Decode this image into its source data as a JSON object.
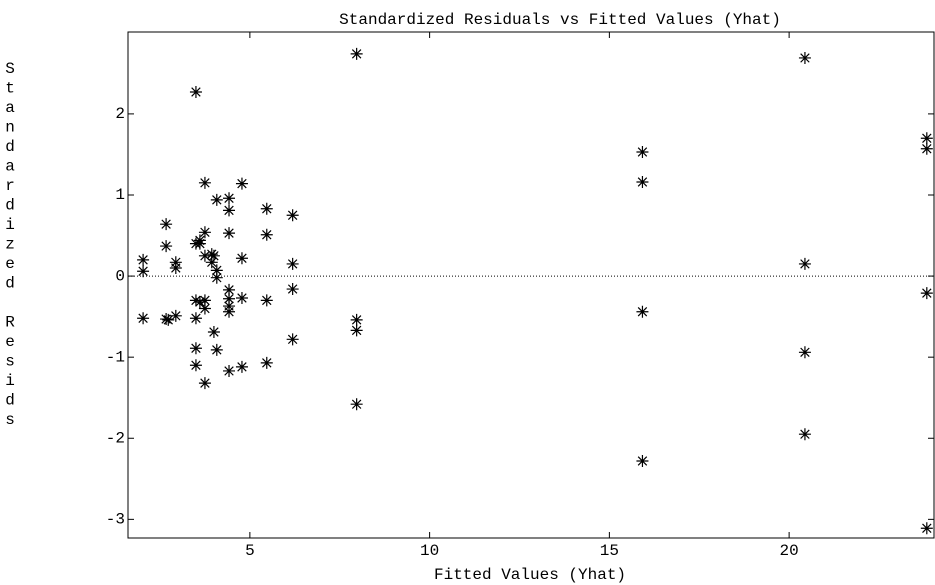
{
  "chart_data": {
    "type": "scatter",
    "title": "Standardized Residuals vs Fitted Values (Yhat)",
    "x_label": "Fitted Values (Yhat)",
    "y_label": "Standardized Resids",
    "color": "#000000",
    "x": [
      2.03,
      2.03,
      2.03,
      2.67,
      2.67,
      2.67,
      2.73,
      2.94,
      2.94,
      2.94,
      3.5,
      3.5,
      3.5,
      3.5,
      3.5,
      3.5,
      3.61,
      3.61,
      3.61,
      3.75,
      3.75,
      3.75,
      3.75,
      3.75,
      3.75,
      3.94,
      3.94,
      4.0,
      4.0,
      4.08,
      4.08,
      4.08,
      4.08,
      4.42,
      4.42,
      4.42,
      4.42,
      4.42,
      4.42,
      4.42,
      4.42,
      4.78,
      4.78,
      4.78,
      4.78,
      5.47,
      5.47,
      5.47,
      5.47,
      6.19,
      6.19,
      6.19,
      6.19,
      7.97,
      7.97,
      7.97,
      7.97,
      15.92,
      15.92,
      15.92,
      15.92,
      20.44,
      20.44,
      20.44,
      20.44,
      23.83,
      23.83,
      23.83,
      23.83
    ],
    "y": [
      0.2,
      0.06,
      -0.52,
      0.64,
      0.37,
      -0.53,
      -0.54,
      0.17,
      0.1,
      -0.49,
      2.27,
      -0.3,
      -0.52,
      -0.89,
      -1.1,
      0.4,
      0.4,
      -0.32,
      0.44,
      1.15,
      0.54,
      0.25,
      -0.3,
      -0.4,
      -1.32,
      0.27,
      0.17,
      -0.69,
      0.25,
      0.94,
      0.07,
      -0.02,
      -0.91,
      0.96,
      0.81,
      0.53,
      -0.17,
      -0.28,
      -0.37,
      -0.44,
      -1.17,
      1.14,
      0.22,
      -0.27,
      -1.12,
      0.83,
      0.51,
      -0.3,
      -1.07,
      0.75,
      0.15,
      -0.16,
      -0.78,
      2.74,
      -0.54,
      -0.67,
      -1.58,
      1.53,
      1.16,
      -0.44,
      -2.28,
      2.69,
      0.15,
      -0.94,
      -1.95,
      1.7,
      1.57,
      -0.21,
      -3.11
    ],
    "xlim": [
      1.61,
      24.03
    ],
    "ylim": [
      -3.23,
      3.01
    ],
    "xticks": [
      5,
      10,
      15,
      20
    ],
    "yticks": [
      -3,
      -2,
      -1,
      0,
      1,
      2
    ],
    "zero_line": true
  }
}
